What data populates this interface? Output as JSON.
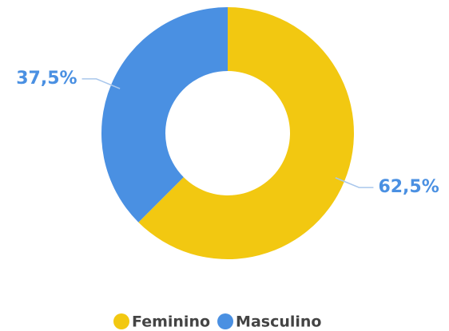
{
  "chart_data": {
    "type": "donut",
    "categories": [
      "Feminino",
      "Masculino"
    ],
    "values": [
      62.5,
      37.5
    ],
    "value_labels": [
      "62,5%",
      "37,5%"
    ],
    "colors": [
      "#f2c811",
      "#4a90e2"
    ],
    "legend": "bottom"
  }
}
